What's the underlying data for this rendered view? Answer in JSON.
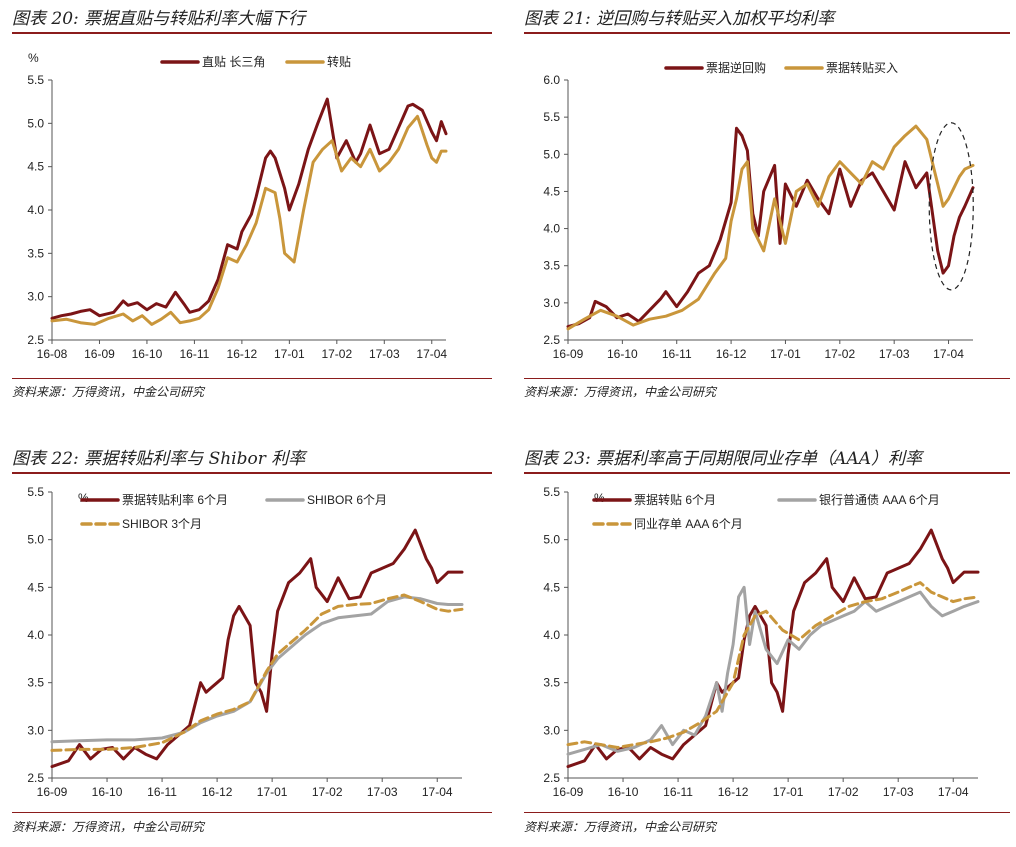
{
  "colors": {
    "dark": "#7b1416",
    "gold": "#c9963b",
    "grey": "#a3a3a3",
    "rule": "#8b1c1c"
  },
  "panels": [
    {
      "title": "图表 20: 票据直贴与转贴利率大幅下行",
      "source": "资料来源：万得资讯，中金公司研究",
      "chart_data": {
        "type": "line",
        "ylabel": "%",
        "ylim": [
          2.5,
          5.5
        ],
        "yticks": [
          "5.5",
          "5.0",
          "4.5",
          "4.0",
          "3.5",
          "3.0",
          "2.5"
        ],
        "xlim": [
          0,
          8.3
        ],
        "xticks": [
          "16-08",
          "16-09",
          "16-10",
          "16-11",
          "16-12",
          "17-01",
          "17-02",
          "17-03",
          "17-04"
        ],
        "series": [
          {
            "name": "直贴 长三角",
            "color": "dark",
            "dash": false,
            "x": [
              0,
              0.2,
              0.4,
              0.6,
              0.8,
              1.0,
              1.3,
              1.5,
              1.6,
              1.8,
              2.0,
              2.2,
              2.4,
              2.6,
              2.8,
              2.9,
              3.1,
              3.3,
              3.5,
              3.7,
              3.9,
              4.0,
              4.2,
              4.3,
              4.5,
              4.6,
              4.7,
              4.9,
              5.0,
              5.2,
              5.4,
              5.6,
              5.8,
              6.0,
              6.2,
              6.4,
              6.5,
              6.7,
              6.9,
              7.1,
              7.3,
              7.5,
              7.6,
              7.8,
              8.0,
              8.1,
              8.2,
              8.3
            ],
            "y": [
              2.75,
              2.78,
              2.8,
              2.83,
              2.85,
              2.78,
              2.82,
              2.95,
              2.9,
              2.93,
              2.85,
              2.92,
              2.88,
              3.05,
              2.9,
              2.82,
              2.85,
              2.95,
              3.2,
              3.6,
              3.55,
              3.75,
              3.95,
              4.15,
              4.6,
              4.68,
              4.6,
              4.25,
              4.0,
              4.3,
              4.7,
              5.0,
              5.28,
              4.6,
              4.8,
              4.55,
              4.65,
              4.98,
              4.65,
              4.7,
              4.95,
              5.2,
              5.22,
              5.15,
              4.9,
              4.8,
              5.02,
              4.88
            ]
          },
          {
            "name": "转贴",
            "color": "gold",
            "dash": false,
            "x": [
              0,
              0.3,
              0.6,
              0.9,
              1.2,
              1.5,
              1.7,
              1.9,
              2.1,
              2.3,
              2.5,
              2.7,
              2.9,
              3.1,
              3.3,
              3.5,
              3.7,
              3.9,
              4.1,
              4.3,
              4.5,
              4.7,
              4.8,
              4.9,
              5.1,
              5.3,
              5.5,
              5.7,
              5.9,
              6.1,
              6.3,
              6.5,
              6.7,
              6.9,
              7.1,
              7.3,
              7.5,
              7.7,
              7.9,
              8.0,
              8.1,
              8.2,
              8.3
            ],
            "y": [
              2.72,
              2.74,
              2.7,
              2.68,
              2.75,
              2.8,
              2.72,
              2.78,
              2.68,
              2.74,
              2.82,
              2.7,
              2.72,
              2.75,
              2.85,
              3.1,
              3.45,
              3.4,
              3.6,
              3.85,
              4.25,
              4.2,
              3.9,
              3.5,
              3.4,
              4.0,
              4.55,
              4.7,
              4.8,
              4.45,
              4.6,
              4.5,
              4.7,
              4.45,
              4.55,
              4.7,
              4.95,
              5.08,
              4.75,
              4.6,
              4.55,
              4.68,
              4.68
            ]
          }
        ]
      }
    },
    {
      "title": "图表 21: 逆回购与转贴买入加权平均利率",
      "source": "资料来源：万得资讯，中金公司研究",
      "chart_data": {
        "type": "line",
        "ylabel": "",
        "ylim": [
          2.5,
          6.0
        ],
        "yticks": [
          "6.0",
          "5.5",
          "5.0",
          "4.5",
          "4.0",
          "3.5",
          "3.0",
          "2.5"
        ],
        "xlim": [
          0,
          7.45
        ],
        "xticks": [
          "16-09",
          "16-10",
          "16-11",
          "16-12",
          "17-01",
          "17-02",
          "17-03",
          "17-04"
        ],
        "series": [
          {
            "name": "票据逆回购",
            "color": "dark",
            "dash": false,
            "x": [
              0,
              0.2,
              0.4,
              0.5,
              0.7,
              0.9,
              1.1,
              1.3,
              1.5,
              1.7,
              1.8,
              2.0,
              2.2,
              2.4,
              2.6,
              2.8,
              3.0,
              3.1,
              3.2,
              3.3,
              3.4,
              3.5,
              3.6,
              3.8,
              3.9,
              4.0,
              4.2,
              4.4,
              4.6,
              4.8,
              5.0,
              5.2,
              5.4,
              5.6,
              5.8,
              6.0,
              6.2,
              6.4,
              6.6,
              6.8,
              6.9,
              7.0,
              7.1,
              7.2,
              7.3,
              7.45
            ],
            "y": [
              2.68,
              2.72,
              2.8,
              3.02,
              2.95,
              2.8,
              2.85,
              2.75,
              2.9,
              3.05,
              3.15,
              2.95,
              3.15,
              3.4,
              3.5,
              3.85,
              4.35,
              5.35,
              5.25,
              5.05,
              4.2,
              3.9,
              4.5,
              4.85,
              3.8,
              4.6,
              4.3,
              4.65,
              4.4,
              4.2,
              4.8,
              4.3,
              4.65,
              4.75,
              4.5,
              4.25,
              4.9,
              4.55,
              4.75,
              3.7,
              3.4,
              3.5,
              3.9,
              4.15,
              4.3,
              4.55
            ]
          },
          {
            "name": "票据转贴买入",
            "color": "gold",
            "dash": false,
            "x": [
              0,
              0.3,
              0.6,
              0.9,
              1.2,
              1.5,
              1.8,
              2.1,
              2.4,
              2.7,
              2.9,
              3.0,
              3.1,
              3.2,
              3.3,
              3.4,
              3.6,
              3.8,
              4.0,
              4.2,
              4.4,
              4.6,
              4.8,
              5.0,
              5.2,
              5.4,
              5.6,
              5.8,
              6.0,
              6.2,
              6.4,
              6.6,
              6.7,
              6.8,
              6.9,
              7.0,
              7.1,
              7.2,
              7.3,
              7.45
            ],
            "y": [
              2.65,
              2.78,
              2.9,
              2.82,
              2.7,
              2.78,
              2.82,
              2.9,
              3.05,
              3.4,
              3.6,
              4.1,
              4.4,
              4.8,
              4.9,
              4.0,
              3.7,
              4.4,
              3.8,
              4.5,
              4.6,
              4.3,
              4.7,
              4.9,
              4.75,
              4.6,
              4.9,
              4.8,
              5.1,
              5.25,
              5.38,
              5.2,
              4.9,
              4.6,
              4.3,
              4.4,
              4.55,
              4.7,
              4.8,
              4.85
            ]
          }
        ]
      }
    },
    {
      "title": "图表 22: 票据转贴利率与 Shibor 利率",
      "source": "资料来源：万得资讯，中金公司研究",
      "chart_data": {
        "type": "line",
        "ylabel": "%",
        "ylim": [
          2.5,
          5.5
        ],
        "yticks": [
          "5.5",
          "5.0",
          "4.5",
          "4.0",
          "3.5",
          "3.0",
          "2.5"
        ],
        "xlim": [
          0,
          7.45
        ],
        "xticks": [
          "16-09",
          "16-10",
          "16-11",
          "16-12",
          "17-01",
          "17-02",
          "17-03",
          "17-04"
        ],
        "series": [
          {
            "name": "票据转贴利率 6个月",
            "color": "dark",
            "dash": false,
            "x": [
              0,
              0.3,
              0.5,
              0.7,
              0.9,
              1.1,
              1.3,
              1.5,
              1.7,
              1.9,
              2.1,
              2.3,
              2.5,
              2.7,
              2.8,
              2.9,
              3.0,
              3.1,
              3.2,
              3.3,
              3.4,
              3.6,
              3.7,
              3.8,
              3.9,
              4.0,
              4.1,
              4.3,
              4.5,
              4.7,
              4.8,
              5.0,
              5.2,
              5.4,
              5.6,
              5.8,
              6.0,
              6.2,
              6.4,
              6.6,
              6.8,
              6.9,
              7.0,
              7.2,
              7.45
            ],
            "y": [
              2.62,
              2.68,
              2.85,
              2.7,
              2.8,
              2.82,
              2.7,
              2.82,
              2.75,
              2.7,
              2.85,
              2.95,
              3.05,
              3.5,
              3.4,
              3.45,
              3.5,
              3.55,
              3.95,
              4.2,
              4.3,
              4.1,
              3.5,
              3.4,
              3.2,
              3.8,
              4.25,
              4.55,
              4.65,
              4.8,
              4.5,
              4.35,
              4.6,
              4.38,
              4.4,
              4.65,
              4.7,
              4.75,
              4.9,
              5.1,
              4.8,
              4.7,
              4.55,
              4.66,
              4.66
            ]
          },
          {
            "name": "SHIBOR 6个月",
            "color": "grey",
            "dash": false,
            "x": [
              0,
              0.5,
              1.0,
              1.5,
              2.0,
              2.4,
              2.7,
              3.0,
              3.3,
              3.6,
              3.9,
              4.1,
              4.3,
              4.6,
              4.9,
              5.2,
              5.5,
              5.8,
              6.1,
              6.4,
              6.7,
              7.0,
              7.2,
              7.45
            ],
            "y": [
              2.88,
              2.89,
              2.9,
              2.9,
              2.92,
              2.98,
              3.08,
              3.15,
              3.2,
              3.3,
              3.6,
              3.75,
              3.85,
              4.0,
              4.12,
              4.18,
              4.2,
              4.22,
              4.35,
              4.4,
              4.38,
              4.33,
              4.32,
              4.32
            ]
          },
          {
            "name": "SHIBOR 3个月",
            "color": "gold",
            "dash": true,
            "x": [
              0,
              0.5,
              1.0,
              1.5,
              2.0,
              2.4,
              2.7,
              3.0,
              3.3,
              3.6,
              3.9,
              4.1,
              4.3,
              4.6,
              4.9,
              5.2,
              5.5,
              5.8,
              6.1,
              6.4,
              6.7,
              7.0,
              7.2,
              7.45
            ],
            "y": [
              2.79,
              2.8,
              2.8,
              2.82,
              2.87,
              2.98,
              3.1,
              3.17,
              3.22,
              3.3,
              3.62,
              3.8,
              3.9,
              4.05,
              4.22,
              4.3,
              4.32,
              4.33,
              4.38,
              4.42,
              4.35,
              4.27,
              4.25,
              4.27
            ]
          }
        ]
      }
    },
    {
      "title": "图表 23: 票据利率高于同期限同业存单（AAA）利率",
      "source": "资料来源：万得资讯，中金公司研究",
      "chart_data": {
        "type": "line",
        "ylabel": "%",
        "ylim": [
          2.5,
          5.5
        ],
        "yticks": [
          "5.5",
          "5.0",
          "4.5",
          "4.0",
          "3.5",
          "3.0",
          "2.5"
        ],
        "xlim": [
          0,
          7.45
        ],
        "xticks": [
          "16-09",
          "16-10",
          "16-11",
          "16-12",
          "17-01",
          "17-02",
          "17-03",
          "17-04"
        ],
        "series": [
          {
            "name": "票据转贴 6个月",
            "color": "dark",
            "dash": false,
            "x": [
              0,
              0.3,
              0.5,
              0.7,
              0.9,
              1.1,
              1.3,
              1.5,
              1.7,
              1.9,
              2.1,
              2.3,
              2.5,
              2.7,
              2.8,
              2.9,
              3.0,
              3.1,
              3.2,
              3.3,
              3.4,
              3.6,
              3.7,
              3.8,
              3.9,
              4.0,
              4.1,
              4.3,
              4.5,
              4.7,
              4.8,
              5.0,
              5.2,
              5.4,
              5.6,
              5.8,
              6.0,
              6.2,
              6.4,
              6.6,
              6.8,
              6.9,
              7.0,
              7.2,
              7.45
            ],
            "y": [
              2.62,
              2.68,
              2.85,
              2.7,
              2.8,
              2.82,
              2.7,
              2.82,
              2.75,
              2.7,
              2.85,
              2.95,
              3.05,
              3.5,
              3.4,
              3.45,
              3.5,
              3.55,
              3.95,
              4.2,
              4.3,
              4.1,
              3.5,
              3.4,
              3.2,
              3.8,
              4.25,
              4.55,
              4.65,
              4.8,
              4.5,
              4.35,
              4.6,
              4.38,
              4.4,
              4.65,
              4.7,
              4.75,
              4.9,
              5.1,
              4.8,
              4.7,
              4.55,
              4.66,
              4.66
            ]
          },
          {
            "name": "银行普通债 AAA 6个月",
            "color": "grey",
            "dash": false,
            "x": [
              0,
              0.3,
              0.6,
              0.9,
              1.2,
              1.5,
              1.7,
              1.9,
              2.1,
              2.3,
              2.5,
              2.7,
              2.8,
              2.9,
              3.0,
              3.1,
              3.2,
              3.3,
              3.4,
              3.6,
              3.8,
              4.0,
              4.2,
              4.4,
              4.6,
              4.8,
              5.0,
              5.2,
              5.4,
              5.6,
              5.8,
              6.0,
              6.2,
              6.4,
              6.6,
              6.8,
              7.0,
              7.2,
              7.45
            ],
            "y": [
              2.75,
              2.8,
              2.85,
              2.78,
              2.82,
              2.9,
              3.05,
              2.85,
              3.0,
              2.95,
              3.15,
              3.5,
              3.2,
              3.6,
              3.9,
              4.4,
              4.5,
              3.9,
              4.25,
              3.85,
              3.7,
              3.95,
              3.85,
              4.0,
              4.1,
              4.15,
              4.2,
              4.25,
              4.35,
              4.25,
              4.3,
              4.35,
              4.4,
              4.45,
              4.3,
              4.2,
              4.25,
              4.3,
              4.35
            ]
          },
          {
            "name": "同业存单 AAA 6个月",
            "color": "gold",
            "dash": true,
            "x": [
              0,
              0.3,
              0.6,
              0.9,
              1.2,
              1.5,
              1.8,
              2.1,
              2.4,
              2.7,
              3.0,
              3.2,
              3.4,
              3.6,
              3.9,
              4.2,
              4.5,
              4.8,
              5.1,
              5.4,
              5.7,
              6.0,
              6.2,
              6.4,
              6.6,
              6.8,
              7.0,
              7.2,
              7.45
            ],
            "y": [
              2.85,
              2.88,
              2.85,
              2.82,
              2.85,
              2.88,
              2.92,
              2.98,
              3.08,
              3.2,
              3.5,
              4.0,
              4.2,
              4.25,
              4.05,
              3.95,
              4.1,
              4.2,
              4.3,
              4.35,
              4.38,
              4.45,
              4.5,
              4.55,
              4.45,
              4.4,
              4.35,
              4.38,
              4.4
            ]
          }
        ]
      }
    }
  ]
}
